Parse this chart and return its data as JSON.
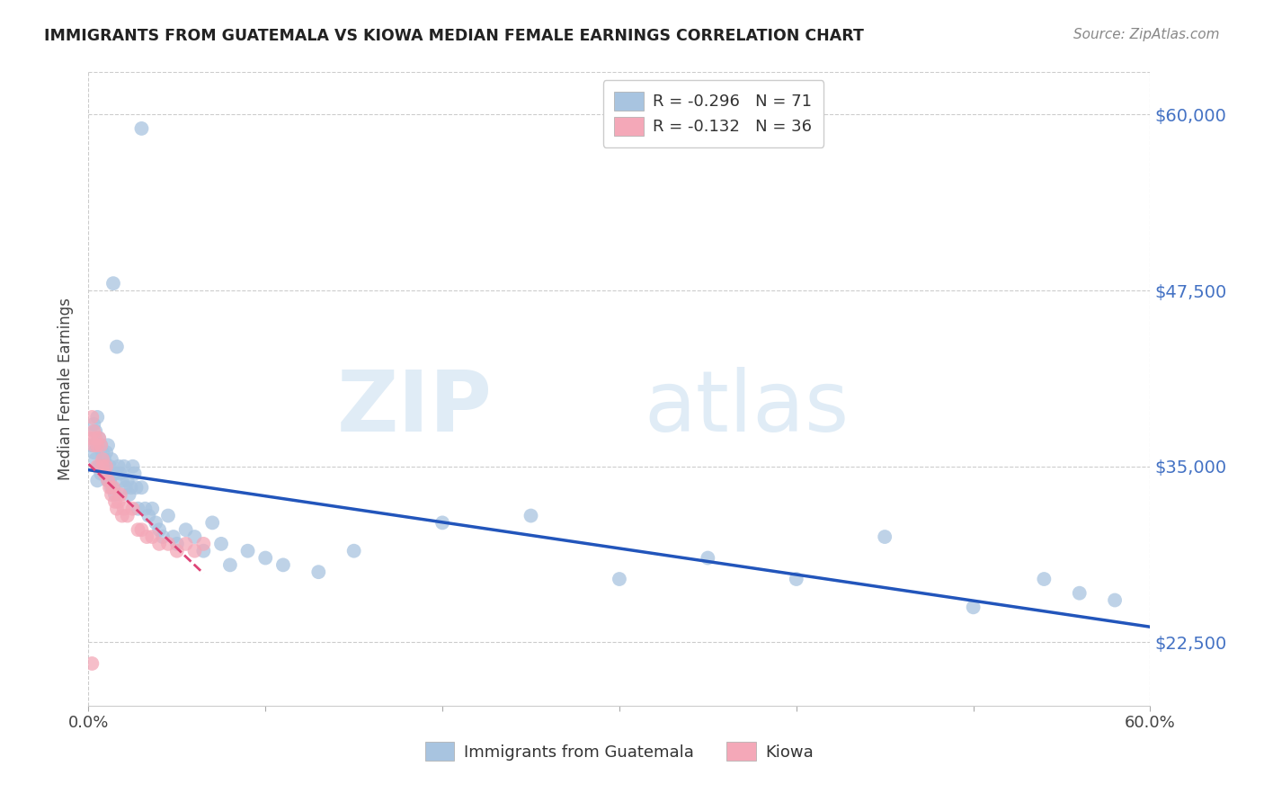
{
  "title": "IMMIGRANTS FROM GUATEMALA VS KIOWA MEDIAN FEMALE EARNINGS CORRELATION CHART",
  "source": "Source: ZipAtlas.com",
  "ylabel": "Median Female Earnings",
  "y_ticks": [
    22500,
    35000,
    47500,
    60000
  ],
  "y_tick_labels": [
    "$22,500",
    "$35,000",
    "$47,500",
    "$60,000"
  ],
  "xlim": [
    0.0,
    0.6
  ],
  "ylim": [
    18000,
    63000
  ],
  "r_guatemala": -0.296,
  "n_guatemala": 71,
  "r_kiowa": -0.132,
  "n_kiowa": 36,
  "color_guatemala": "#a8c4e0",
  "color_kiowa": "#f4a8b8",
  "line_color_guatemala": "#2255bb",
  "line_color_kiowa": "#dd4477",
  "legend_label_guatemala": "Immigrants from Guatemala",
  "legend_label_kiowa": "Kiowa",
  "guatemala_x": [
    0.002,
    0.003,
    0.003,
    0.004,
    0.004,
    0.005,
    0.005,
    0.006,
    0.006,
    0.007,
    0.007,
    0.008,
    0.008,
    0.009,
    0.009,
    0.01,
    0.01,
    0.011,
    0.011,
    0.012,
    0.012,
    0.013,
    0.013,
    0.014,
    0.015,
    0.015,
    0.016,
    0.017,
    0.018,
    0.019,
    0.02,
    0.021,
    0.022,
    0.023,
    0.024,
    0.025,
    0.026,
    0.027,
    0.028,
    0.03,
    0.032,
    0.034,
    0.036,
    0.038,
    0.04,
    0.042,
    0.045,
    0.048,
    0.05,
    0.055,
    0.06,
    0.065,
    0.07,
    0.075,
    0.08,
    0.09,
    0.1,
    0.11,
    0.13,
    0.15,
    0.2,
    0.25,
    0.3,
    0.35,
    0.4,
    0.45,
    0.5,
    0.54,
    0.56,
    0.58,
    0.03
  ],
  "guatemala_y": [
    36500,
    38000,
    36000,
    37500,
    35500,
    38500,
    34000,
    37000,
    35000,
    36500,
    34500,
    36000,
    35000,
    34500,
    35500,
    35000,
    36000,
    34000,
    36500,
    35000,
    34000,
    35500,
    33500,
    48000,
    34500,
    33000,
    43500,
    35000,
    34500,
    34000,
    35000,
    33500,
    34000,
    33000,
    33500,
    35000,
    34500,
    33500,
    32000,
    33500,
    32000,
    31500,
    32000,
    31000,
    30500,
    30000,
    31500,
    30000,
    29500,
    30500,
    30000,
    29000,
    31000,
    29500,
    28000,
    29000,
    28500,
    28000,
    27500,
    29000,
    31000,
    31500,
    27000,
    28500,
    27000,
    30000,
    25000,
    27000,
    26000,
    25500,
    59000
  ],
  "kiowa_x": [
    0.001,
    0.002,
    0.003,
    0.003,
    0.004,
    0.005,
    0.005,
    0.006,
    0.007,
    0.008,
    0.008,
    0.009,
    0.01,
    0.011,
    0.012,
    0.013,
    0.014,
    0.015,
    0.016,
    0.017,
    0.018,
    0.019,
    0.02,
    0.022,
    0.025,
    0.028,
    0.03,
    0.033,
    0.036,
    0.04,
    0.045,
    0.05,
    0.055,
    0.06,
    0.065,
    0.002
  ],
  "kiowa_y": [
    37000,
    38500,
    37500,
    36500,
    37000,
    36500,
    35000,
    37000,
    36500,
    35500,
    35000,
    34500,
    35000,
    34000,
    33500,
    33000,
    33500,
    32500,
    32000,
    32500,
    33000,
    31500,
    32000,
    31500,
    32000,
    30500,
    30500,
    30000,
    30000,
    29500,
    29500,
    29000,
    29500,
    29000,
    29500,
    21000
  ]
}
